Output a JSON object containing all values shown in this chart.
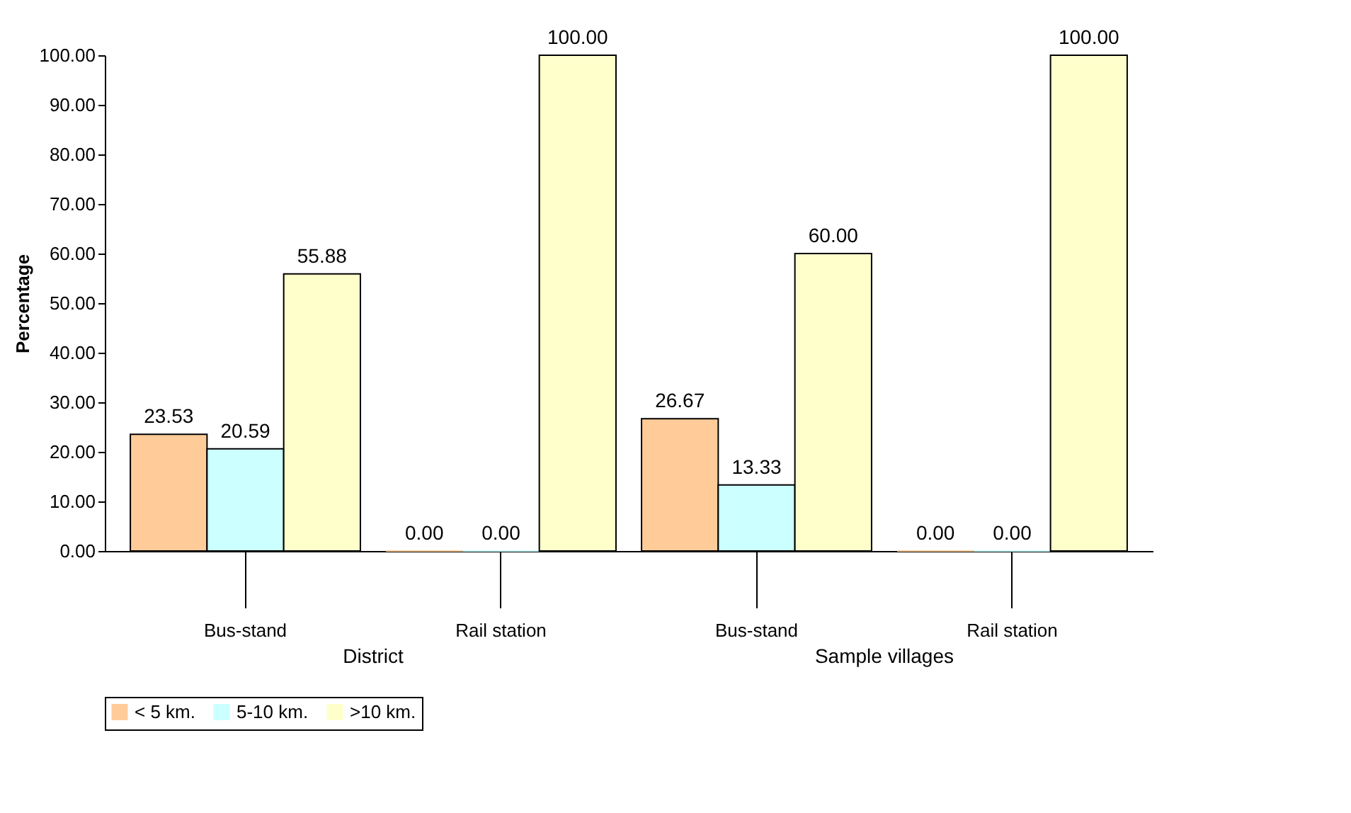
{
  "chart_data": {
    "type": "bar",
    "ylabel": "Percentage",
    "categories": [
      "Bus-stand",
      "Rail station",
      "Bus-stand",
      "Rail station"
    ],
    "annotations": [
      "District",
      "Sample villages"
    ],
    "series": [
      {
        "name": "< 5 km.",
        "color": "#ffcc99",
        "values": [
          23.53,
          0,
          26.67,
          0
        ],
        "value_labels": [
          "23.53",
          "0.00",
          "26.67",
          "0.00"
        ]
      },
      {
        "name": "5-10 km.",
        "color": "#ccffff",
        "values": [
          20.59,
          0,
          13.33,
          0
        ],
        "value_labels": [
          "20.59",
          "0.00",
          "13.33",
          "0.00"
        ]
      },
      {
        "name": ">10 km.",
        "color": "#ffffcc",
        "values": [
          55.88,
          100,
          60,
          100
        ],
        "value_labels": [
          "55.88",
          "100.00",
          "60.00",
          "100.00"
        ]
      }
    ],
    "ylim": [
      0,
      100
    ],
    "yticks": [
      {
        "value": 0,
        "label": "0.00"
      },
      {
        "value": 10,
        "label": "10.00"
      },
      {
        "value": 20,
        "label": "20.00"
      },
      {
        "value": 30,
        "label": "30.00"
      },
      {
        "value": 40,
        "label": "40.00"
      },
      {
        "value": 50,
        "label": "50.00"
      },
      {
        "value": 60,
        "label": "60.00"
      },
      {
        "value": 70,
        "label": "70.00"
      },
      {
        "value": 80,
        "label": "80.00"
      },
      {
        "value": 90,
        "label": "90.00"
      },
      {
        "value": 100,
        "label": "100.00"
      }
    ],
    "grid": false,
    "legend": "bottom"
  }
}
